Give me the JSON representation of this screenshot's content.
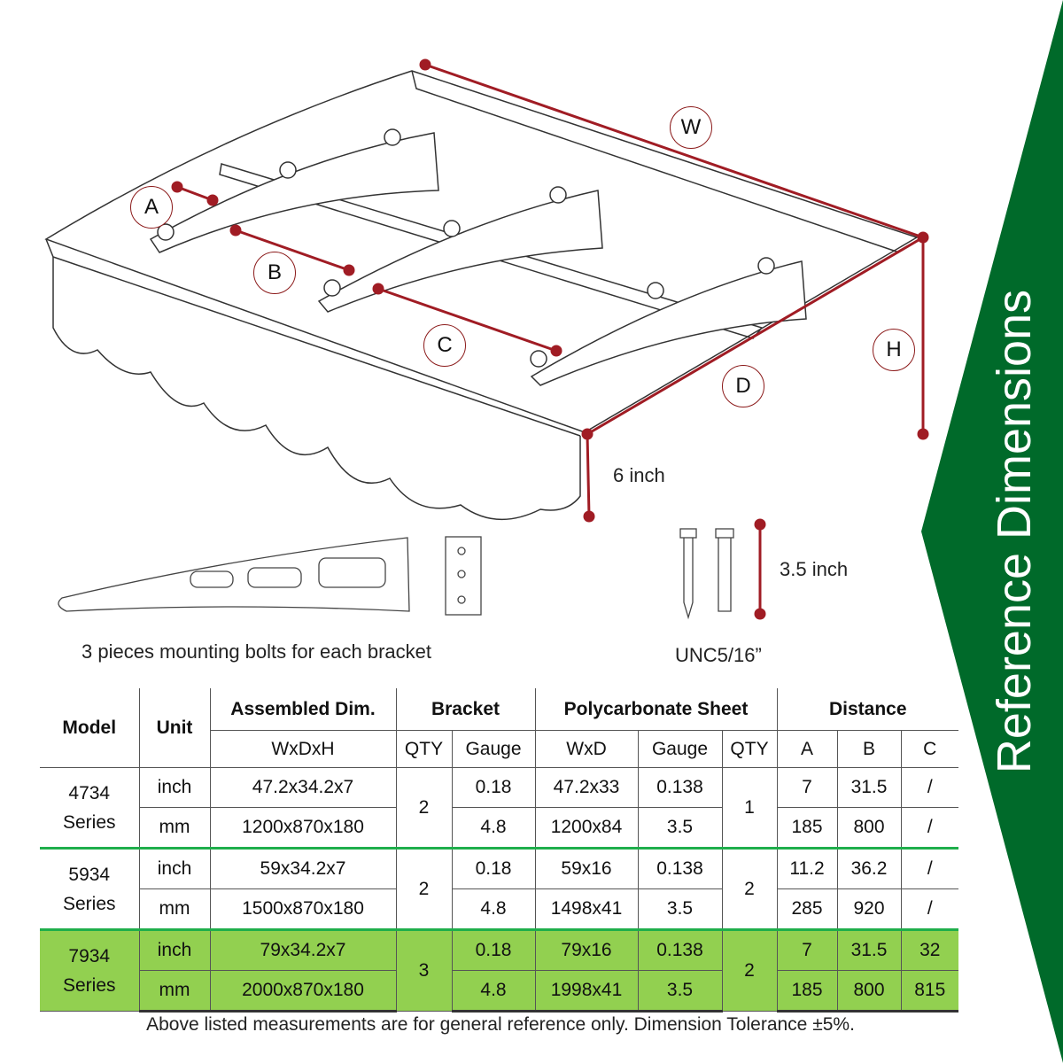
{
  "banner": {
    "title": "Reference Dimensions",
    "color": "#006a2a"
  },
  "diagram": {
    "dimension_labels": [
      "W",
      "A",
      "B",
      "C",
      "D",
      "H"
    ],
    "dimension_color": "#a01c24",
    "six_inch": "6 inch",
    "bolt_length": "3.5 inch",
    "bolt_thread": "UNC5/16”",
    "bracket_caption": "3 pieces mounting bolts for each bracket"
  },
  "table": {
    "headers": {
      "model": "Model",
      "unit": "Unit",
      "assembled": "Assembled Dim.",
      "bracket": "Bracket",
      "sheet": "Polycarbonate Sheet",
      "distance": "Distance",
      "wxdxh": "WxDxH",
      "qty": "QTY",
      "gauge": "Gauge",
      "wxd": "WxD",
      "gauge2": "Gauge",
      "qty2": "QTY",
      "a": "A",
      "b": "B",
      "c": "C"
    },
    "rows": [
      {
        "model": "4734",
        "series": "Series",
        "bracket_qty": "2",
        "sheet_qty": "1",
        "inch": {
          "unit": "inch",
          "dim": "47.2x34.2x7",
          "gauge": "0.18",
          "wxd": "47.2x33",
          "sgauge": "0.138",
          "a": "7",
          "b": "31.5",
          "c": "/"
        },
        "mm": {
          "unit": "mm",
          "dim": "1200x870x180",
          "gauge": "4.8",
          "wxd": "1200x84",
          "sgauge": "3.5",
          "a": "185",
          "b": "800",
          "c": "/"
        }
      },
      {
        "model": "5934",
        "series": "Series",
        "bracket_qty": "2",
        "sheet_qty": "2",
        "inch": {
          "unit": "inch",
          "dim": "59x34.2x7",
          "gauge": "0.18",
          "wxd": "59x16",
          "sgauge": "0.138",
          "a": "11.2",
          "b": "36.2",
          "c": "/"
        },
        "mm": {
          "unit": "mm",
          "dim": "1500x870x180",
          "gauge": "4.8",
          "wxd": "1498x41",
          "sgauge": "3.5",
          "a": "285",
          "b": "920",
          "c": "/"
        }
      },
      {
        "model": "7934",
        "series": "Series",
        "bracket_qty": "3",
        "sheet_qty": "2",
        "inch": {
          "unit": "inch",
          "dim": "79x34.2x7",
          "gauge": "0.18",
          "wxd": "79x16",
          "sgauge": "0.138",
          "a": "7",
          "b": "31.5",
          "c": "32"
        },
        "mm": {
          "unit": "mm",
          "dim": "2000x870x180",
          "gauge": "4.8",
          "wxd": "1998x41",
          "sgauge": "3.5",
          "a": "185",
          "b": "800",
          "c": "815"
        }
      }
    ],
    "highlight_color": "#92d050",
    "footnote": "Above listed measurements are for general reference only. Dimension Tolerance ±5%."
  }
}
